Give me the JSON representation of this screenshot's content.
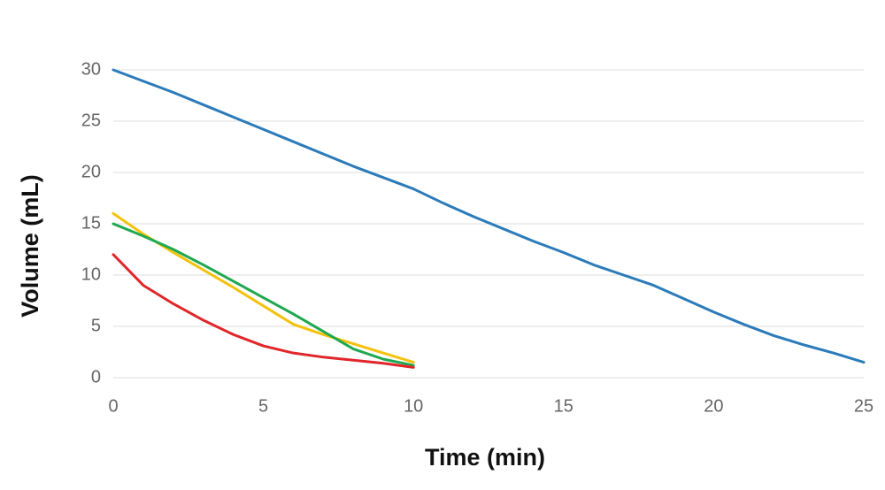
{
  "chart_data": {
    "type": "line",
    "x_label": "Time (min)",
    "y_label": "Volume (mL)",
    "x": [
      0,
      1,
      2,
      3,
      4,
      5,
      6,
      7,
      8,
      9,
      10,
      11,
      12,
      13,
      14,
      15,
      16,
      17,
      18,
      19,
      20,
      21,
      22,
      23,
      24,
      25
    ],
    "series": [
      {
        "color": "#2b7bba",
        "values": [
          30,
          28.9,
          27.8,
          26.6,
          25.4,
          24.2,
          23.0,
          21.8,
          20.6,
          19.5,
          18.4,
          17.0,
          15.7,
          14.5,
          13.3,
          12.2,
          11.0,
          10.0,
          9.0,
          7.7,
          6.4,
          5.2,
          4.1,
          3.2,
          2.4,
          1.5
        ]
      },
      {
        "color": "#f4c20d",
        "values": [
          16,
          14,
          12.2,
          10.5,
          8.8,
          7,
          5.2,
          4.2,
          3.3,
          2.4,
          1.5,
          null,
          null,
          null,
          null,
          null,
          null,
          null,
          null,
          null,
          null,
          null,
          null,
          null,
          null,
          null
        ]
      },
      {
        "color": "#1fa84f",
        "values": [
          15,
          13.8,
          12.5,
          11,
          9.4,
          7.8,
          6.2,
          4.5,
          2.8,
          1.8,
          1.2,
          null,
          null,
          null,
          null,
          null,
          null,
          null,
          null,
          null,
          null,
          null,
          null,
          null,
          null,
          null
        ]
      },
      {
        "color": "#e0262a",
        "values": [
          12,
          9,
          7.2,
          5.6,
          4.2,
          3.1,
          2.4,
          2,
          1.7,
          1.4,
          1.0,
          null,
          null,
          null,
          null,
          null,
          null,
          null,
          null,
          null,
          null,
          null,
          null,
          null,
          null,
          null
        ]
      }
    ],
    "xlim": [
      0,
      25
    ],
    "xticks": [
      0,
      5,
      10,
      15,
      20,
      25
    ],
    "ylim": [
      0,
      30
    ],
    "yticks": [
      0,
      5,
      10,
      15,
      20,
      25,
      30
    ],
    "grid": true
  }
}
